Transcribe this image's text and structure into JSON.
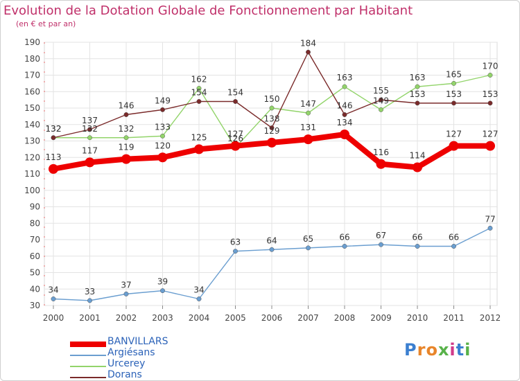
{
  "header": {
    "title": "Evolution de la Dotation Globale de Fonctionnement par Habitant",
    "subtitle": "(en € et par an)"
  },
  "logo": {
    "text": "Proxiti"
  },
  "colors": {
    "title": "#c0306a",
    "axis": "#444444",
    "grid": "#e3e3e3",
    "legend_text": "#2b62b8"
  },
  "chart_data": {
    "type": "line",
    "title": "Evolution de la Dotation Globale de Fonctionnement par Habitant",
    "subtitle": "(en € et par an)",
    "xlabel": "",
    "ylabel": "",
    "categories": [
      "2000",
      "2001",
      "2002",
      "2003",
      "2004",
      "2005",
      "2006",
      "2007",
      "2008",
      "2009",
      "2010",
      "2011",
      "2012"
    ],
    "ylim": [
      30,
      190
    ],
    "yticks": [
      30,
      40,
      50,
      60,
      70,
      80,
      90,
      100,
      110,
      120,
      130,
      140,
      150,
      160,
      170,
      180,
      190
    ],
    "grid": true,
    "legend_position": "bottom-left",
    "series": [
      {
        "name": "BANVILLARS",
        "color": "#ee0000",
        "emphasis": true,
        "values": [
          113,
          117,
          119,
          120,
          125,
          127,
          129,
          131,
          134,
          116,
          114,
          127,
          127
        ]
      },
      {
        "name": "Argiésans",
        "color": "#6a9ed0",
        "values": [
          34,
          33,
          37,
          39,
          34,
          63,
          64,
          65,
          66,
          67,
          66,
          66,
          77
        ]
      },
      {
        "name": "Urcerey",
        "color": "#92d46a",
        "values": [
          132,
          132,
          132,
          133,
          162,
          126,
          150,
          147,
          163,
          149,
          163,
          165,
          170
        ]
      },
      {
        "name": "Dorans",
        "color": "#7a2a2a",
        "values": [
          132,
          137,
          146,
          149,
          154,
          154,
          138,
          184,
          146,
          155,
          153,
          153,
          153
        ]
      }
    ]
  }
}
